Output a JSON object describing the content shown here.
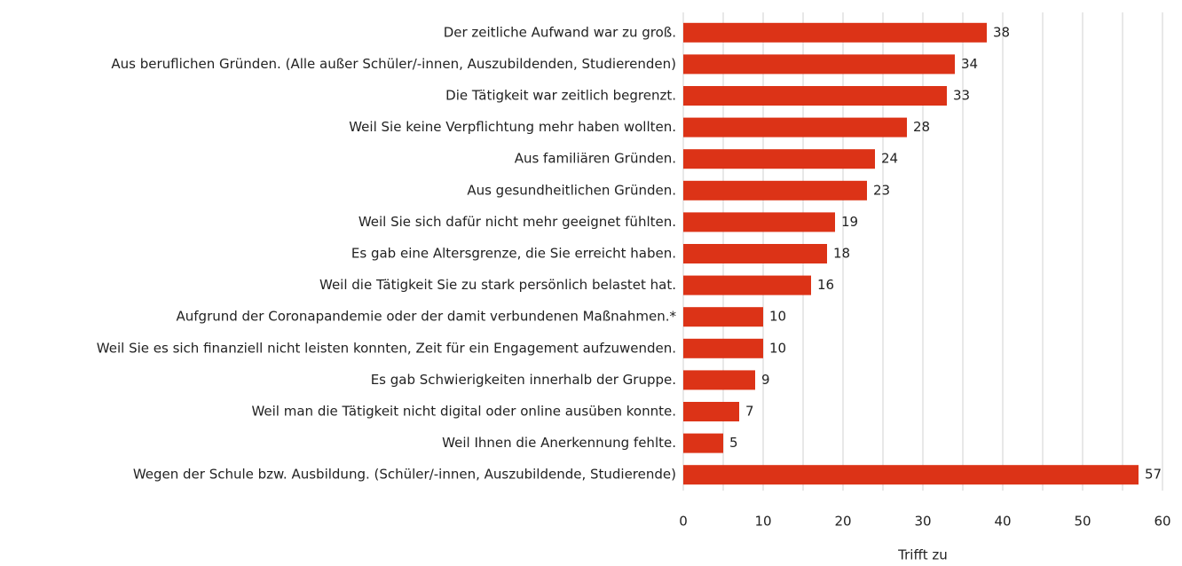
{
  "chart_data": {
    "type": "hbar",
    "categories": [
      "Der zeitliche Aufwand war zu groß.",
      "Aus beruflichen Gründen. (Alle außer Schüler/-innen, Auszubildenden, Studierenden)",
      "Die Tätigkeit war zeitlich begrenzt.",
      "Weil Sie keine Verpflichtung mehr haben wollten.",
      "Aus familiären Gründen.",
      "Aus gesundheitlichen Gründen.",
      "Weil Sie sich dafür nicht mehr geeignet fühlten.",
      "Es gab eine Altersgrenze, die Sie erreicht haben.",
      "Weil die Tätigkeit Sie zu stark persönlich belastet hat.",
      "Aufgrund der Coronapandemie oder der damit verbundenen Maßnahmen.*",
      "Weil Sie es sich finanziell nicht leisten konnten, Zeit für ein Engagement aufzuwenden.",
      "Es gab Schwierigkeiten innerhalb der Gruppe.",
      "Weil man die Tätigkeit nicht digital oder online ausüben konnte.",
      "Weil Ihnen die Anerkennung fehlte.",
      "Wegen der Schule bzw. Ausbildung. (Schüler/-innen, Auszubildende, Studierende)"
    ],
    "values": [
      38,
      34,
      33,
      28,
      24,
      23,
      19,
      18,
      16,
      10,
      10,
      9,
      7,
      5,
      57
    ],
    "color": "#dc3317",
    "xlabel": "Trifft zu",
    "xlim": [
      0,
      60
    ],
    "xticks": [
      0,
      10,
      20,
      30,
      40,
      50,
      60
    ],
    "xminor": [
      5,
      15,
      25,
      35,
      45,
      55
    ],
    "grid": true
  }
}
